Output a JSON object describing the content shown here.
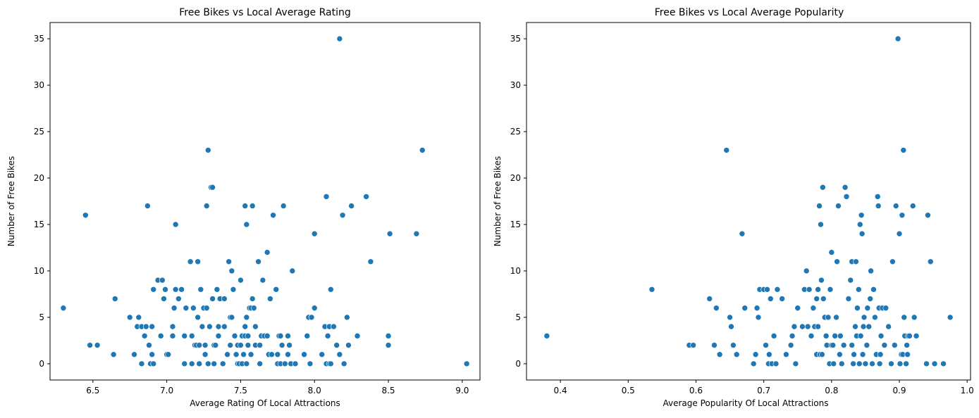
{
  "chart_data": [
    {
      "type": "scatter",
      "title": "Free Bikes vs Local Average Rating",
      "xlabel": "Average Rating Of Local Attractions",
      "ylabel": "Number of Free Bikes",
      "xlim": [
        6.21,
        9.12
      ],
      "ylim": [
        -1.75,
        36.75
      ],
      "xticks": [
        "6.5",
        "7.0",
        "7.5",
        "8.0",
        "8.5",
        "9.0"
      ],
      "xtick_values": [
        6.5,
        7.0,
        7.5,
        8.0,
        8.5,
        9.0
      ],
      "yticks": [
        "0",
        "5",
        "10",
        "15",
        "20",
        "25",
        "30",
        "35"
      ],
      "ytick_values": [
        0,
        5,
        10,
        15,
        20,
        25,
        30,
        35
      ],
      "marker_color": "#1f77b4",
      "grid": false,
      "points": [
        [
          6.3,
          6
        ],
        [
          6.45,
          16
        ],
        [
          6.48,
          2
        ],
        [
          6.53,
          2
        ],
        [
          6.64,
          1
        ],
        [
          6.65,
          7
        ],
        [
          6.75,
          5
        ],
        [
          6.78,
          1
        ],
        [
          6.8,
          4
        ],
        [
          6.81,
          5
        ],
        [
          6.83,
          0
        ],
        [
          6.83,
          4
        ],
        [
          6.85,
          3
        ],
        [
          6.86,
          4
        ],
        [
          6.87,
          17
        ],
        [
          6.88,
          2
        ],
        [
          6.89,
          0
        ],
        [
          6.9,
          4
        ],
        [
          6.9,
          1
        ],
        [
          6.91,
          0
        ],
        [
          6.91,
          8
        ],
        [
          6.94,
          9
        ],
        [
          6.96,
          3
        ],
        [
          6.97,
          9
        ],
        [
          6.98,
          7
        ],
        [
          6.99,
          8
        ],
        [
          7.0,
          1
        ],
        [
          7.01,
          1
        ],
        [
          7.04,
          3
        ],
        [
          7.04,
          4
        ],
        [
          7.05,
          6
        ],
        [
          7.06,
          15
        ],
        [
          7.06,
          8
        ],
        [
          7.08,
          7
        ],
        [
          7.1,
          8
        ],
        [
          7.12,
          0
        ],
        [
          7.12,
          3
        ],
        [
          7.13,
          6
        ],
        [
          7.16,
          11
        ],
        [
          7.17,
          0
        ],
        [
          7.17,
          3
        ],
        [
          7.18,
          6
        ],
        [
          7.19,
          2
        ],
        [
          7.2,
          2
        ],
        [
          7.21,
          11
        ],
        [
          7.21,
          5
        ],
        [
          7.22,
          0
        ],
        [
          7.22,
          2
        ],
        [
          7.23,
          8
        ],
        [
          7.24,
          4
        ],
        [
          7.25,
          6
        ],
        [
          7.26,
          2
        ],
        [
          7.26,
          1
        ],
        [
          7.27,
          6
        ],
        [
          7.27,
          17
        ],
        [
          7.28,
          23
        ],
        [
          7.28,
          0
        ],
        [
          7.29,
          4
        ],
        [
          7.3,
          19
        ],
        [
          7.31,
          19
        ],
        [
          7.31,
          7
        ],
        [
          7.32,
          2
        ],
        [
          7.32,
          0
        ],
        [
          7.33,
          2
        ],
        [
          7.34,
          8
        ],
        [
          7.35,
          4
        ],
        [
          7.35,
          3
        ],
        [
          7.36,
          7
        ],
        [
          7.38,
          0
        ],
        [
          7.39,
          4
        ],
        [
          7.39,
          7
        ],
        [
          7.41,
          1
        ],
        [
          7.42,
          11
        ],
        [
          7.43,
          5
        ],
        [
          7.43,
          2
        ],
        [
          7.44,
          5
        ],
        [
          7.44,
          10
        ],
        [
          7.45,
          8
        ],
        [
          7.46,
          3
        ],
        [
          7.47,
          1
        ],
        [
          7.48,
          2
        ],
        [
          7.48,
          0
        ],
        [
          7.49,
          0
        ],
        [
          7.5,
          9
        ],
        [
          7.5,
          2
        ],
        [
          7.51,
          3
        ],
        [
          7.51,
          0
        ],
        [
          7.52,
          1
        ],
        [
          7.53,
          17
        ],
        [
          7.53,
          3
        ],
        [
          7.53,
          4
        ],
        [
          7.54,
          5
        ],
        [
          7.54,
          0
        ],
        [
          7.54,
          15
        ],
        [
          7.55,
          3
        ],
        [
          7.55,
          2
        ],
        [
          7.56,
          6
        ],
        [
          7.57,
          6
        ],
        [
          7.57,
          1
        ],
        [
          7.58,
          17
        ],
        [
          7.58,
          7
        ],
        [
          7.59,
          6
        ],
        [
          7.6,
          2
        ],
        [
          7.6,
          4
        ],
        [
          7.62,
          11
        ],
        [
          7.63,
          2
        ],
        [
          7.63,
          0
        ],
        [
          7.64,
          3
        ],
        [
          7.65,
          9
        ],
        [
          7.66,
          3
        ],
        [
          7.68,
          12
        ],
        [
          7.68,
          3
        ],
        [
          7.69,
          1
        ],
        [
          7.7,
          7
        ],
        [
          7.71,
          1
        ],
        [
          7.72,
          16
        ],
        [
          7.74,
          8
        ],
        [
          7.75,
          1
        ],
        [
          7.75,
          0
        ],
        [
          7.76,
          3
        ],
        [
          7.77,
          0
        ],
        [
          7.77,
          3
        ],
        [
          7.78,
          2
        ],
        [
          7.79,
          17
        ],
        [
          7.8,
          0
        ],
        [
          7.82,
          3
        ],
        [
          7.82,
          1
        ],
        [
          7.83,
          2
        ],
        [
          7.84,
          0
        ],
        [
          7.85,
          10
        ],
        [
          7.87,
          0
        ],
        [
          7.93,
          1
        ],
        [
          7.95,
          3
        ],
        [
          7.96,
          5
        ],
        [
          7.97,
          0
        ],
        [
          7.98,
          5
        ],
        [
          8.0,
          14
        ],
        [
          8.0,
          6
        ],
        [
          8.05,
          1
        ],
        [
          8.07,
          4
        ],
        [
          8.08,
          18
        ],
        [
          8.08,
          0
        ],
        [
          8.09,
          3
        ],
        [
          8.1,
          0
        ],
        [
          8.1,
          4
        ],
        [
          8.11,
          8
        ],
        [
          8.11,
          0
        ],
        [
          8.13,
          4
        ],
        [
          8.15,
          2
        ],
        [
          8.17,
          1
        ],
        [
          8.17,
          35
        ],
        [
          8.19,
          16
        ],
        [
          8.2,
          0
        ],
        [
          8.22,
          5
        ],
        [
          8.23,
          2
        ],
        [
          8.25,
          17
        ],
        [
          8.29,
          3
        ],
        [
          8.35,
          18
        ],
        [
          8.38,
          11
        ],
        [
          8.5,
          3
        ],
        [
          8.5,
          2
        ],
        [
          8.51,
          14
        ],
        [
          8.69,
          14
        ],
        [
          8.73,
          23
        ],
        [
          9.03,
          0
        ]
      ]
    },
    {
      "type": "scatter",
      "title": "Free Bikes vs Local Average Popularity",
      "xlabel": "Average Popularity Of Local Attractions",
      "ylabel": "Number of Free Bikes",
      "xlim": [
        0.35,
        1.005
      ],
      "ylim": [
        -1.75,
        36.75
      ],
      "xticks": [
        "0.4",
        "0.5",
        "0.6",
        "0.7",
        "0.8",
        "0.9",
        "1.0"
      ],
      "xtick_values": [
        0.4,
        0.5,
        0.6,
        0.7,
        0.8,
        0.9,
        1.0
      ],
      "yticks": [
        "0",
        "5",
        "10",
        "15",
        "20",
        "25",
        "30",
        "35"
      ],
      "ytick_values": [
        0,
        5,
        10,
        15,
        20,
        25,
        30,
        35
      ],
      "marker_color": "#1f77b4",
      "grid": false,
      "points": [
        [
          0.38,
          3
        ],
        [
          0.535,
          8
        ],
        [
          0.59,
          2
        ],
        [
          0.596,
          2
        ],
        [
          0.62,
          7
        ],
        [
          0.627,
          2
        ],
        [
          0.63,
          6
        ],
        [
          0.635,
          1
        ],
        [
          0.645,
          23
        ],
        [
          0.65,
          5
        ],
        [
          0.652,
          4
        ],
        [
          0.655,
          2
        ],
        [
          0.66,
          1
        ],
        [
          0.668,
          14
        ],
        [
          0.672,
          6
        ],
        [
          0.685,
          0
        ],
        [
          0.688,
          1
        ],
        [
          0.69,
          6
        ],
        [
          0.692,
          5
        ],
        [
          0.694,
          8
        ],
        [
          0.7,
          8
        ],
        [
          0.703,
          2
        ],
        [
          0.705,
          8
        ],
        [
          0.707,
          0
        ],
        [
          0.708,
          1
        ],
        [
          0.71,
          7
        ],
        [
          0.712,
          0
        ],
        [
          0.715,
          3
        ],
        [
          0.718,
          0
        ],
        [
          0.72,
          8
        ],
        [
          0.727,
          7
        ],
        [
          0.733,
          1
        ],
        [
          0.74,
          2
        ],
        [
          0.742,
          3
        ],
        [
          0.745,
          4
        ],
        [
          0.747,
          0
        ],
        [
          0.75,
          6
        ],
        [
          0.757,
          4
        ],
        [
          0.76,
          8
        ],
        [
          0.763,
          10
        ],
        [
          0.765,
          4
        ],
        [
          0.767,
          8
        ],
        [
          0.77,
          3
        ],
        [
          0.773,
          6
        ],
        [
          0.775,
          4
        ],
        [
          0.778,
          7
        ],
        [
          0.778,
          1
        ],
        [
          0.78,
          8
        ],
        [
          0.78,
          4
        ],
        [
          0.782,
          17
        ],
        [
          0.783,
          1
        ],
        [
          0.784,
          15
        ],
        [
          0.785,
          9
        ],
        [
          0.786,
          1
        ],
        [
          0.787,
          19
        ],
        [
          0.788,
          7
        ],
        [
          0.79,
          5
        ],
        [
          0.792,
          3
        ],
        [
          0.793,
          2
        ],
        [
          0.795,
          5
        ],
        [
          0.797,
          0
        ],
        [
          0.798,
          8
        ],
        [
          0.8,
          2
        ],
        [
          0.8,
          12
        ],
        [
          0.802,
          2
        ],
        [
          0.803,
          0
        ],
        [
          0.805,
          3
        ],
        [
          0.807,
          5
        ],
        [
          0.808,
          11
        ],
        [
          0.81,
          17
        ],
        [
          0.812,
          1
        ],
        [
          0.813,
          3
        ],
        [
          0.815,
          0
        ],
        [
          0.818,
          2
        ],
        [
          0.82,
          19
        ],
        [
          0.822,
          18
        ],
        [
          0.825,
          7
        ],
        [
          0.828,
          9
        ],
        [
          0.83,
          11
        ],
        [
          0.83,
          2
        ],
        [
          0.832,
          0
        ],
        [
          0.833,
          1
        ],
        [
          0.835,
          4
        ],
        [
          0.836,
          11
        ],
        [
          0.837,
          3
        ],
        [
          0.838,
          6
        ],
        [
          0.84,
          8
        ],
        [
          0.841,
          0
        ],
        [
          0.842,
          15
        ],
        [
          0.843,
          3
        ],
        [
          0.844,
          16
        ],
        [
          0.845,
          14
        ],
        [
          0.846,
          1
        ],
        [
          0.847,
          4
        ],
        [
          0.848,
          5
        ],
        [
          0.85,
          0
        ],
        [
          0.852,
          2
        ],
        [
          0.853,
          6
        ],
        [
          0.855,
          4
        ],
        [
          0.857,
          7
        ],
        [
          0.858,
          10
        ],
        [
          0.86,
          0
        ],
        [
          0.862,
          8
        ],
        [
          0.864,
          5
        ],
        [
          0.866,
          1
        ],
        [
          0.868,
          18
        ],
        [
          0.869,
          17
        ],
        [
          0.87,
          6
        ],
        [
          0.871,
          0
        ],
        [
          0.872,
          1
        ],
        [
          0.873,
          3
        ],
        [
          0.875,
          6
        ],
        [
          0.878,
          2
        ],
        [
          0.88,
          6
        ],
        [
          0.884,
          4
        ],
        [
          0.888,
          0
        ],
        [
          0.89,
          11
        ],
        [
          0.893,
          2
        ],
        [
          0.895,
          17
        ],
        [
          0.898,
          35
        ],
        [
          0.9,
          14
        ],
        [
          0.901,
          0
        ],
        [
          0.903,
          1
        ],
        [
          0.904,
          16
        ],
        [
          0.905,
          1
        ],
        [
          0.906,
          23
        ],
        [
          0.907,
          5
        ],
        [
          0.908,
          3
        ],
        [
          0.91,
          0
        ],
        [
          0.911,
          2
        ],
        [
          0.912,
          1
        ],
        [
          0.913,
          3
        ],
        [
          0.915,
          3
        ],
        [
          0.92,
          17
        ],
        [
          0.922,
          5
        ],
        [
          0.925,
          3
        ],
        [
          0.94,
          0
        ],
        [
          0.942,
          16
        ],
        [
          0.946,
          11
        ],
        [
          0.952,
          0
        ],
        [
          0.965,
          0
        ],
        [
          0.975,
          5
        ]
      ]
    }
  ]
}
